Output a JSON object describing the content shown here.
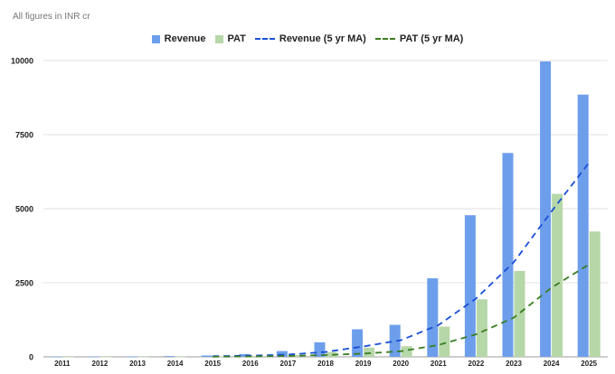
{
  "caption": "All figures in INR cr",
  "colors": {
    "revenue": "#6d9eeb",
    "pat": "#b6d7a8",
    "revenue_ma": "#1a4fd6",
    "pat_ma": "#3a7d22",
    "grid": "#e0e0e0"
  },
  "chart_data": {
    "type": "bar",
    "title": "",
    "xlabel": "",
    "ylabel": "",
    "ylim": [
      0,
      10000
    ],
    "yticks": [
      0,
      2500,
      5000,
      7500,
      10000
    ],
    "categories": [
      "2011",
      "2012",
      "2013",
      "2014",
      "2015",
      "2016",
      "2017",
      "2018",
      "2019",
      "2020",
      "2021",
      "2022",
      "2023",
      "2024",
      "2025"
    ],
    "legend": [
      "Revenue",
      "PAT",
      "Revenue (5 yr MA)",
      "PAT (5 yr MA)"
    ],
    "legend_position": "top-center",
    "series": [
      {
        "name": "Revenue",
        "kind": "bar",
        "values": [
          5,
          10,
          15,
          25,
          45,
          95,
          195,
          490,
          930,
          1080,
          2650,
          4780,
          6880,
          9970,
          8850
        ]
      },
      {
        "name": "PAT",
        "kind": "bar",
        "values": [
          2,
          3,
          5,
          8,
          15,
          30,
          60,
          160,
          310,
          360,
          1020,
          1940,
          2900,
          5500,
          4230
        ]
      }
    ],
    "lines": [
      {
        "name": "Revenue (5 yr MA)",
        "kind": "dashed-line",
        "start_index": 4,
        "values": [
          20,
          40,
          75,
          165,
          350,
          560,
          1070,
          1970,
          3190,
          4900,
          6550
        ]
      },
      {
        "name": "PAT (5 yr MA)",
        "kind": "dashed-line",
        "start_index": 4,
        "values": [
          7,
          14,
          30,
          60,
          110,
          190,
          400,
          760,
          1320,
          2330,
          3120
        ]
      }
    ]
  }
}
